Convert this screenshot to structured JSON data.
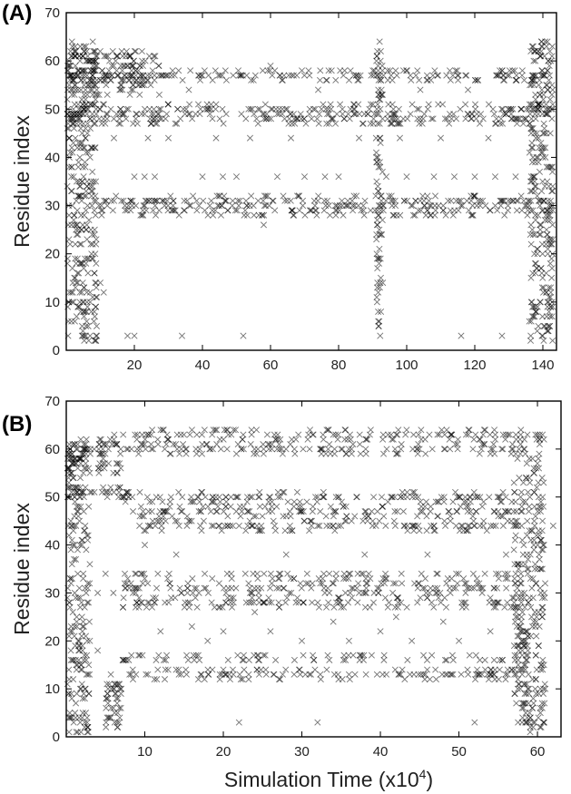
{
  "figure": {
    "xlabel": "Simulation Time (x10",
    "xlabel_exponent": "4",
    "xlabel_close": ")"
  },
  "chart_data": [
    {
      "type": "scatter",
      "panel_label": "(A)",
      "title": "",
      "xlabel": "",
      "ylabel": "Residue index",
      "xlim": [
        0,
        144
      ],
      "ylim": [
        0,
        70
      ],
      "xticks": [
        "20",
        "40",
        "60",
        "80",
        "100",
        "120",
        "140"
      ],
      "yticks": [
        "0",
        "10",
        "20",
        "30",
        "40",
        "50",
        "60",
        "70"
      ],
      "xtick_values": [
        20,
        40,
        60,
        80,
        100,
        120,
        140
      ],
      "ytick_values": [
        0,
        10,
        20,
        30,
        40,
        50,
        60,
        70
      ],
      "marker": "x",
      "grid": false,
      "bands": [
        {
          "x": [
            0,
            28
          ],
          "y": [
            53,
            62
          ]
        },
        {
          "x": [
            0,
            143
          ],
          "y": [
            56,
            58
          ]
        },
        {
          "x": [
            0,
            143
          ],
          "y": [
            47,
            51
          ]
        },
        {
          "x": [
            8,
            143
          ],
          "y": [
            28,
            32
          ]
        },
        {
          "x": [
            136,
            143
          ],
          "y": [
            2,
            64
          ]
        },
        {
          "x": [
            0,
            9
          ],
          "y": [
            2,
            64
          ]
        },
        {
          "x": [
            91,
            93
          ],
          "y": [
            3,
            64
          ]
        }
      ],
      "points": [
        [
          3,
          14
        ],
        [
          4,
          10
        ],
        [
          5,
          8
        ],
        [
          7,
          3
        ],
        [
          9,
          3
        ],
        [
          10,
          14
        ],
        [
          11,
          12
        ],
        [
          14,
          44
        ],
        [
          18,
          3
        ],
        [
          20,
          3
        ],
        [
          20,
          36
        ],
        [
          23,
          36
        ],
        [
          24,
          44
        ],
        [
          26,
          36
        ],
        [
          30,
          44
        ],
        [
          34,
          3
        ],
        [
          36,
          54
        ],
        [
          40,
          36
        ],
        [
          44,
          44
        ],
        [
          46,
          36
        ],
        [
          50,
          36
        ],
        [
          52,
          3
        ],
        [
          54,
          44
        ],
        [
          58,
          26
        ],
        [
          60,
          59
        ],
        [
          62,
          36
        ],
        [
          66,
          44
        ],
        [
          70,
          36
        ],
        [
          74,
          54
        ],
        [
          76,
          36
        ],
        [
          80,
          36
        ],
        [
          86,
          44
        ],
        [
          94,
          36
        ],
        [
          98,
          44
        ],
        [
          100,
          36
        ],
        [
          104,
          54
        ],
        [
          108,
          36
        ],
        [
          110,
          44
        ],
        [
          114,
          36
        ],
        [
          116,
          3
        ],
        [
          118,
          54
        ],
        [
          120,
          36
        ],
        [
          124,
          44
        ],
        [
          126,
          36
        ],
        [
          128,
          3
        ],
        [
          128,
          58
        ],
        [
          132,
          36
        ]
      ]
    },
    {
      "type": "scatter",
      "panel_label": "(B)",
      "title": "",
      "xlabel": "",
      "ylabel": "Residue index",
      "xlim": [
        0,
        63
      ],
      "ylim": [
        0,
        70
      ],
      "xticks": [
        "10",
        "20",
        "30",
        "40",
        "50",
        "60"
      ],
      "yticks": [
        "0",
        "10",
        "20",
        "30",
        "40",
        "50",
        "60",
        "70"
      ],
      "xtick_values": [
        10,
        20,
        30,
        40,
        50,
        60
      ],
      "ytick_values": [
        0,
        10,
        20,
        30,
        40,
        50,
        60,
        70
      ],
      "marker": "x",
      "grid": false,
      "bands": [
        {
          "x": [
            6,
            58
          ],
          "y": [
            62,
            64
          ]
        },
        {
          "x": [
            7,
            58
          ],
          "y": [
            59,
            61
          ]
        },
        {
          "x": [
            0,
            7
          ],
          "y": [
            55,
            62
          ]
        },
        {
          "x": [
            0,
            8
          ],
          "y": [
            50,
            52
          ]
        },
        {
          "x": [
            7,
            58
          ],
          "y": [
            49,
            51
          ]
        },
        {
          "x": [
            8,
            58
          ],
          "y": [
            46,
            48
          ]
        },
        {
          "x": [
            9,
            58
          ],
          "y": [
            43,
            45
          ]
        },
        {
          "x": [
            7,
            58
          ],
          "y": [
            33,
            34
          ]
        },
        {
          "x": [
            7,
            58
          ],
          "y": [
            30,
            32
          ]
        },
        {
          "x": [
            7,
            58
          ],
          "y": [
            27,
            29
          ]
        },
        {
          "x": [
            7,
            58
          ],
          "y": [
            16,
            17
          ]
        },
        {
          "x": [
            7,
            58
          ],
          "y": [
            12,
            14
          ]
        },
        {
          "x": [
            0,
            3
          ],
          "y": [
            0,
            62
          ]
        },
        {
          "x": [
            5,
            7
          ],
          "y": [
            1,
            13
          ]
        },
        {
          "x": [
            57,
            61
          ],
          "y": [
            1,
            64
          ]
        }
      ],
      "points": [
        [
          2,
          40
        ],
        [
          3,
          36
        ],
        [
          4,
          30
        ],
        [
          5,
          34
        ],
        [
          6,
          30
        ],
        [
          1,
          44
        ],
        [
          2,
          25
        ],
        [
          3,
          20
        ],
        [
          4,
          18
        ],
        [
          10,
          40
        ],
        [
          12,
          22
        ],
        [
          14,
          38
        ],
        [
          16,
          23
        ],
        [
          18,
          20
        ],
        [
          20,
          22
        ],
        [
          22,
          3
        ],
        [
          24,
          26
        ],
        [
          26,
          22
        ],
        [
          28,
          38
        ],
        [
          30,
          20
        ],
        [
          32,
          3
        ],
        [
          34,
          24
        ],
        [
          36,
          20
        ],
        [
          38,
          38
        ],
        [
          40,
          22
        ],
        [
          42,
          25
        ],
        [
          44,
          20
        ],
        [
          46,
          38
        ],
        [
          48,
          24
        ],
        [
          50,
          20
        ],
        [
          52,
          3
        ],
        [
          54,
          22
        ],
        [
          56,
          38
        ],
        [
          60,
          57
        ],
        [
          60,
          63
        ],
        [
          61,
          10
        ],
        [
          62,
          44
        ]
      ]
    }
  ]
}
